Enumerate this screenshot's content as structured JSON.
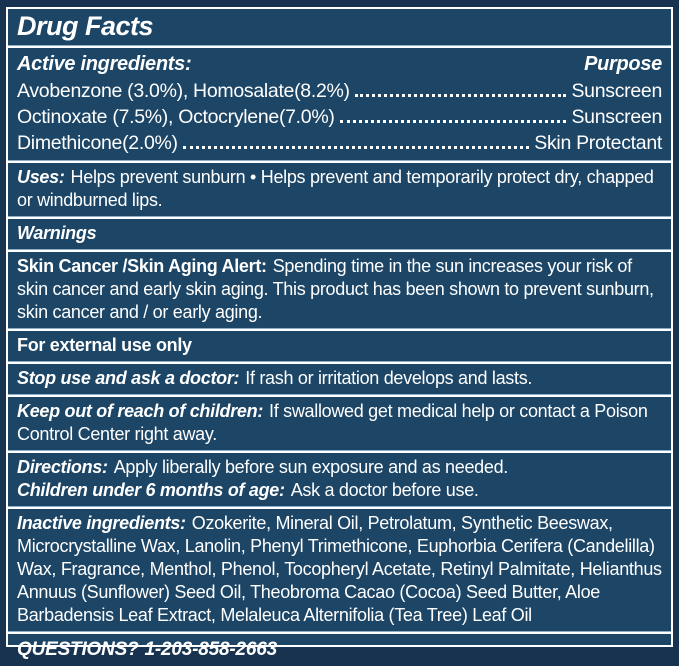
{
  "colors": {
    "panel_background": "#1c4566",
    "outer_border": "#17334f",
    "divider": "#ffffff",
    "divider_tint": "#8fafc6",
    "text": "#ffffff"
  },
  "title": "Drug Facts",
  "active_ingredients": {
    "header": "Active ingredients:",
    "purpose_header": "Purpose",
    "rows": [
      {
        "name": "Avobenzone (3.0%), Homosalate(8.2%)",
        "purpose": "Sunscreen"
      },
      {
        "name": "Octinoxate (7.5%), Octocrylene(7.0%)",
        "purpose": "Sunscreen"
      },
      {
        "name": "Dimethicone(2.0%)",
        "purpose": "Skin Protectant"
      }
    ]
  },
  "uses": {
    "label": "Uses:",
    "text": "Helps prevent sunburn • Helps prevent and temporarily protect dry, chapped or windburned lips."
  },
  "warnings": {
    "label": "Warnings"
  },
  "skin_alert": {
    "label": "Skin Cancer /Skin Aging Alert:",
    "text": "Spending time in the sun increases your risk of skin cancer and early skin aging. This product has been shown to prevent sunburn, skin cancer and / or early aging."
  },
  "external_use": {
    "label": "For external use only"
  },
  "stop_use": {
    "label": "Stop use and ask a doctor:",
    "text": "If rash or irritation develops and lasts."
  },
  "keep_out": {
    "label": "Keep out of reach of children:",
    "text": "If swallowed get medical help or contact a Poison Control Center right away."
  },
  "directions": {
    "label": "Directions:",
    "text": "Apply liberally before sun exposure and as needed."
  },
  "children": {
    "label": "Children under 6 months of age:",
    "text": "Ask a doctor before use."
  },
  "inactive_ingredients": {
    "label": "Inactive ingredients:",
    "text": "Ozokerite, Mineral Oil, Petrolatum, Synthetic Beeswax, Microcrystalline Wax, Lanolin, Phenyl Trimethicone, Euphorbia Cerifera (Candelilla) Wax, Fragrance, Menthol, Phenol, Tocopheryl Acetate, Retinyl Palmitate, Helianthus Annuus (Sunflower) Seed Oil, Theobroma Cacao (Cocoa) Seed Butter, Aloe Barbadensis Leaf Extract, Melaleuca Alternifolia (Tea Tree) Leaf Oil"
  },
  "questions": {
    "label": "QUESTIONS?",
    "phone": "1-203-858-2663"
  }
}
